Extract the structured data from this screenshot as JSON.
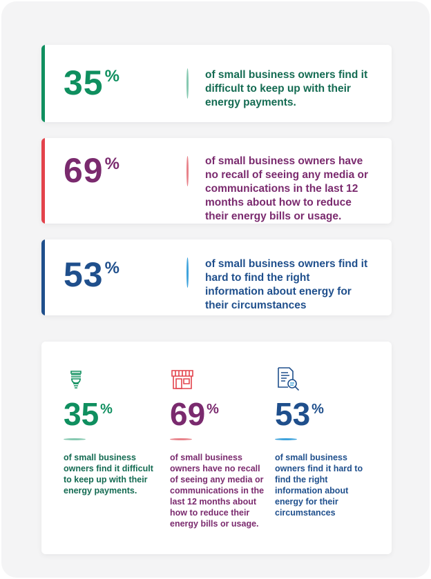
{
  "colors": {
    "green": "#0f8f5f",
    "green_text": "#146b52",
    "red": "#e3424b",
    "purple": "#7a2a6e",
    "blue": "#1f4f8c",
    "light_blue": "#3fa3dc"
  },
  "top_cards": [
    {
      "value": "35",
      "unit": "%",
      "text": "of small business owners find it difficult to keep up with their energy payments."
    },
    {
      "value": "69",
      "unit": "%",
      "text": "of small business owners have no recall of seeing any  media or communications in the last 12 months about how to reduce their energy bills or usage."
    },
    {
      "value": "53",
      "unit": "%",
      "text": "of small business owners find it hard to find the right information about energy for their circumstances"
    }
  ],
  "bottom_columns": [
    {
      "icon": "lightbulb-icon",
      "value": "35",
      "unit": "%",
      "text": "of small business owners find it difficult to keep up with their energy payments."
    },
    {
      "icon": "shop-icon",
      "value": "69",
      "unit": "%",
      "text": "of small business owners have no recall of seeing any  media or communications in the last 12 months about how to reduce their energy bills or usage."
    },
    {
      "icon": "document-search-icon",
      "value": "53",
      "unit": "%",
      "text": "of small business owners find it hard to find the right information about energy for their circumstances"
    }
  ]
}
